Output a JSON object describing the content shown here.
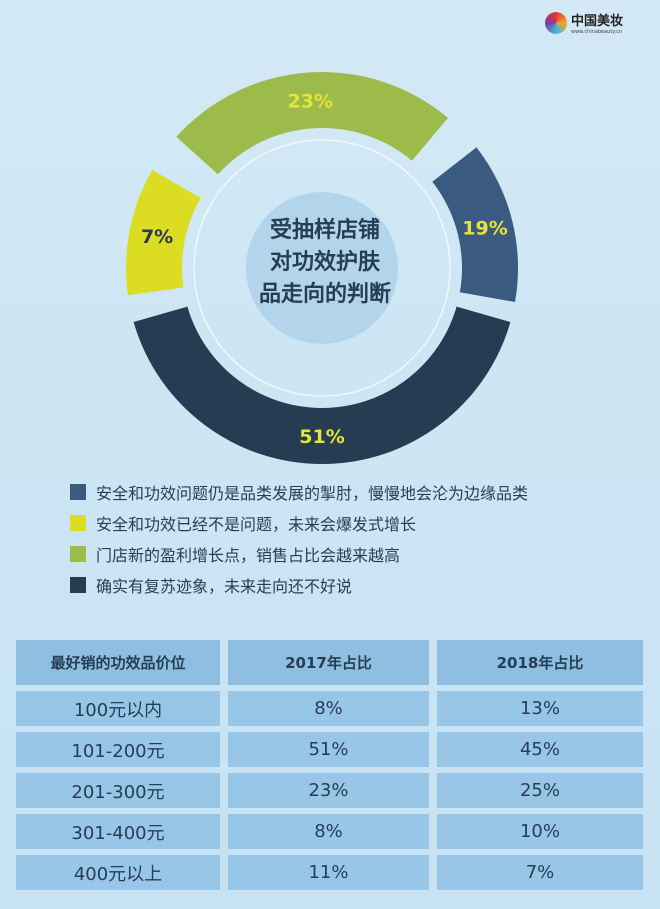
{
  "logo": {
    "title": "中国美妆",
    "url": "www.chinabeauty.cn"
  },
  "chart_data": {
    "type": "pie",
    "title": "受抽样店铺对功效护肤品走向的判断",
    "title_lines": [
      "受抽样店铺",
      "对功效护肤",
      "品走向的判断"
    ],
    "slices": [
      {
        "label": "安全和功效问题仍是品类发展的掣肘，慢慢地会沦为边缘品类",
        "value": 19,
        "value_label": "19%",
        "color": "#3a5a80"
      },
      {
        "label": "安全和功效已经不是问题，未来会爆发式增长",
        "value": 7,
        "value_label": "7%",
        "color": "#dcdc22"
      },
      {
        "label": "门店新的盈利增长点，销售占比会越来越高",
        "value": 23,
        "value_label": "23%",
        "color": "#9dbb4a"
      },
      {
        "label": "确实有复苏迹象，未来走向还不好说",
        "value": 51,
        "value_label": "51%",
        "color": "#253c52"
      }
    ],
    "legend_position": "bottom"
  },
  "table": {
    "headers": [
      "最好销的功效品价位",
      "2017年占比",
      "2018年占比"
    ],
    "rows": [
      [
        "100元以内",
        "8%",
        "13%"
      ],
      [
        "101-200元",
        "51%",
        "45%"
      ],
      [
        "201-300元",
        "23%",
        "25%"
      ],
      [
        "301-400元",
        "8%",
        "10%"
      ],
      [
        "400元以上",
        "11%",
        "7%"
      ]
    ]
  }
}
